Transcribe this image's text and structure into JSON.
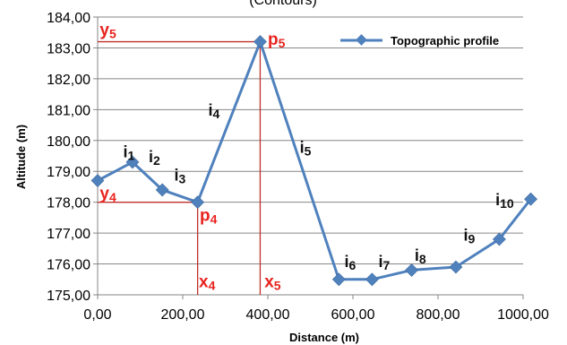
{
  "top_text": "(Contours)",
  "chart_data": {
    "type": "line",
    "title": "",
    "xlabel": "Distance (m)",
    "ylabel": "Altitude (m)",
    "xlim": [
      0,
      1000
    ],
    "ylim": [
      175,
      184
    ],
    "x_ticks": [
      0,
      200,
      400,
      600,
      800,
      1000
    ],
    "y_ticks": [
      175,
      176,
      177,
      178,
      179,
      180,
      181,
      182,
      183,
      184
    ],
    "x_tick_labels": [
      "0,00",
      "200,00",
      "400,00",
      "600,00",
      "800,00",
      "1000,00"
    ],
    "y_tick_labels": [
      "175,00",
      "176,00",
      "177,00",
      "178,00",
      "179,00",
      "180,00",
      "181,00",
      "182,00",
      "183,00",
      "184,00"
    ],
    "grid": "horizontal",
    "legend_position": "top-right",
    "series": [
      {
        "name": "Topographic profile",
        "color": "#4f81bd",
        "marker": "diamond",
        "x": [
          0,
          82,
          152,
          235,
          382,
          567,
          645,
          738,
          842,
          944,
          1018
        ],
        "y": [
          178.7,
          179.3,
          178.4,
          178.0,
          183.2,
          175.5,
          175.5,
          175.8,
          175.9,
          176.8,
          178.1
        ]
      }
    ],
    "annotations": {
      "segment_labels": [
        {
          "base": "i",
          "sub": "1",
          "x": 60,
          "y": 179.45
        },
        {
          "base": "i",
          "sub": "2",
          "x": 120,
          "y": 179.3
        },
        {
          "base": "i",
          "sub": "3",
          "x": 180,
          "y": 178.7
        },
        {
          "base": "i",
          "sub": "4",
          "x": 260,
          "y": 180.8
        },
        {
          "base": "i",
          "sub": "5",
          "x": 475,
          "y": 179.6
        },
        {
          "base": "i",
          "sub": "6",
          "x": 580,
          "y": 175.9
        },
        {
          "base": "i",
          "sub": "7",
          "x": 660,
          "y": 175.9
        },
        {
          "base": "i",
          "sub": "8",
          "x": 745,
          "y": 176.1
        },
        {
          "base": "i",
          "sub": "9",
          "x": 860,
          "y": 176.75
        },
        {
          "base": "i",
          "sub": "10",
          "x": 935,
          "y": 177.9
        }
      ],
      "points": [
        {
          "base": "p",
          "sub": "4",
          "x": 240,
          "y": 177.4
        },
        {
          "base": "p",
          "sub": "5",
          "x": 400,
          "y": 183.1
        }
      ],
      "guide_labels": [
        {
          "base": "y",
          "sub": "4",
          "x": 5,
          "y": 178.1
        },
        {
          "base": "y",
          "sub": "5",
          "x": 5,
          "y": 183.4
        },
        {
          "base": "x",
          "sub": "4",
          "x": 238,
          "y": 175.25
        },
        {
          "base": "x",
          "sub": "5",
          "x": 392,
          "y": 175.25
        }
      ],
      "guide_color": "#c0302c",
      "guides": [
        {
          "point_x": 235,
          "point_y": 178.0
        },
        {
          "point_x": 382,
          "point_y": 183.2
        }
      ]
    }
  }
}
